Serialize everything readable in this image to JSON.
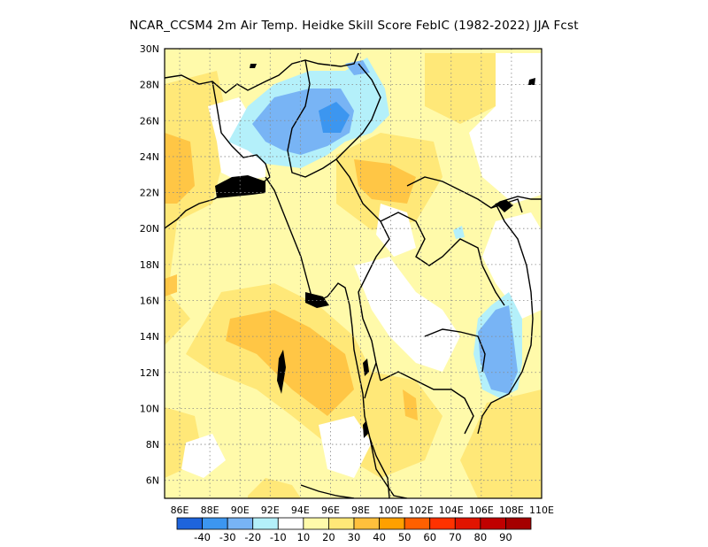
{
  "title": "NCAR_CCSM4  2m Air Temp. Heidke Skill Score FebIC (1982-2022) JJA Fcst",
  "map": {
    "lon_labels": [
      "86E",
      "88E",
      "90E",
      "92E",
      "94E",
      "96E",
      "98E",
      "100E",
      "102E",
      "104E",
      "106E",
      "108E",
      "110E"
    ],
    "lat_labels": [
      "6N",
      "8N",
      "10N",
      "12N",
      "14N",
      "16N",
      "18N",
      "20N",
      "22N",
      "24N",
      "26N",
      "28N",
      "30N"
    ],
    "lon_range": [
      85,
      110
    ],
    "lat_range": [
      5,
      30
    ],
    "grid": true
  },
  "colorbar": {
    "colors": [
      "#1e64dc",
      "#3c96f0",
      "#78b4f5",
      "#b4f0fa",
      "#ffffff",
      "#fffaaa",
      "#ffe878",
      "#ffc03c",
      "#ffa000",
      "#ff6000",
      "#ff3200",
      "#e11400",
      "#c00000",
      "#a50000"
    ],
    "labels": [
      "-40",
      "-30",
      "-20",
      "-10",
      "10",
      "20",
      "30",
      "40",
      "50",
      "60",
      "70",
      "80",
      "90"
    ]
  },
  "legend_meaning": {
    "negative": "blue shades",
    "positive": "yellow-orange shades"
  }
}
